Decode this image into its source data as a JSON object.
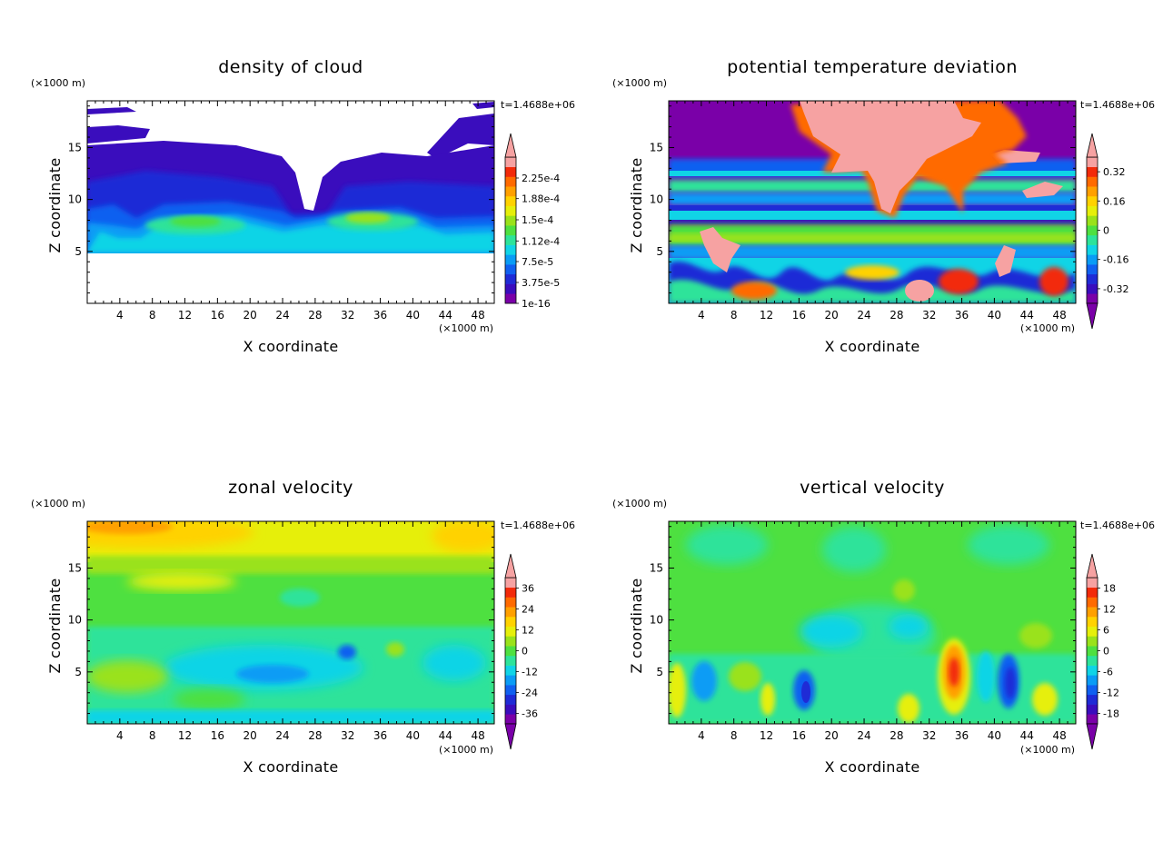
{
  "chart_data": [
    {
      "type": "heatmap",
      "title": "density of cloud",
      "xlabel": "X coordinate",
      "ylabel": "Z coordinate",
      "x_unit": "(×1000 m)",
      "y_unit": "(×1000 m)",
      "time_label": "t=1.4688e+06",
      "xlim": [
        0,
        50
      ],
      "ylim": [
        0,
        19.5
      ],
      "x_ticks": [
        "4",
        "8",
        "12",
        "16",
        "20",
        "24",
        "28",
        "32",
        "36",
        "40",
        "44",
        "48"
      ],
      "y_ticks": [
        "5",
        "10",
        "15"
      ],
      "colorbar_ticks": [
        "2.25e-4",
        "1.88e-4",
        "1.5e-4",
        "1.12e-4",
        "7.5e-5",
        "3.75e-5",
        "1e-16"
      ],
      "colorbar_range": [
        0,
        0.0002625
      ],
      "colorbar_bottom_arrow": false
    },
    {
      "type": "heatmap",
      "title": "potential temperature deviation",
      "xlabel": "X coordinate",
      "ylabel": "Z coordinate",
      "x_unit": "(×1000 m)",
      "y_unit": "(×1000 m)",
      "time_label": "t=1.4688e+06",
      "xlim": [
        0,
        50
      ],
      "ylim": [
        0,
        19.5
      ],
      "x_ticks": [
        "4",
        "8",
        "12",
        "16",
        "20",
        "24",
        "28",
        "32",
        "36",
        "40",
        "44",
        "48"
      ],
      "y_ticks": [
        "5",
        "10",
        "15"
      ],
      "colorbar_ticks": [
        "0.32",
        "0.16",
        "0",
        "-0.16",
        "-0.32"
      ],
      "colorbar_range": [
        -0.4,
        0.4
      ],
      "colorbar_bottom_arrow": true
    },
    {
      "type": "heatmap",
      "title": "zonal velocity",
      "xlabel": "X coordinate",
      "ylabel": "Z coordinate",
      "x_unit": "(×1000 m)",
      "y_unit": "(×1000 m)",
      "time_label": "t=1.4688e+06",
      "xlim": [
        0,
        50
      ],
      "ylim": [
        0,
        19.5
      ],
      "x_ticks": [
        "4",
        "8",
        "12",
        "16",
        "20",
        "24",
        "28",
        "32",
        "36",
        "40",
        "44",
        "48"
      ],
      "y_ticks": [
        "5",
        "10",
        "15"
      ],
      "colorbar_ticks": [
        "36",
        "24",
        "12",
        "0",
        "-12",
        "-24",
        "-36"
      ],
      "colorbar_range": [
        -42,
        42
      ],
      "colorbar_bottom_arrow": true
    },
    {
      "type": "heatmap",
      "title": "vertical velocity",
      "xlabel": "X coordinate",
      "ylabel": "Z coordinate",
      "x_unit": "(×1000 m)",
      "y_unit": "(×1000 m)",
      "time_label": "t=1.4688e+06",
      "xlim": [
        0,
        50
      ],
      "ylim": [
        0,
        19.5
      ],
      "x_ticks": [
        "4",
        "8",
        "12",
        "16",
        "20",
        "24",
        "28",
        "32",
        "36",
        "40",
        "44",
        "48"
      ],
      "y_ticks": [
        "5",
        "10",
        "15"
      ],
      "colorbar_ticks": [
        "18",
        "12",
        "6",
        "0",
        "-6",
        "-12",
        "-18"
      ],
      "colorbar_range": [
        -21,
        21
      ],
      "colorbar_bottom_arrow": true
    }
  ],
  "colormap": [
    "#7a00a8",
    "#3a0dbd",
    "#1f2bd6",
    "#1060f0",
    "#0a9cf5",
    "#10d4e6",
    "#2de39a",
    "#4ee040",
    "#9ae21a",
    "#e6ef0a",
    "#ffd200",
    "#ffa000",
    "#ff6a00",
    "#f22a0a",
    "#f6a2a2"
  ]
}
